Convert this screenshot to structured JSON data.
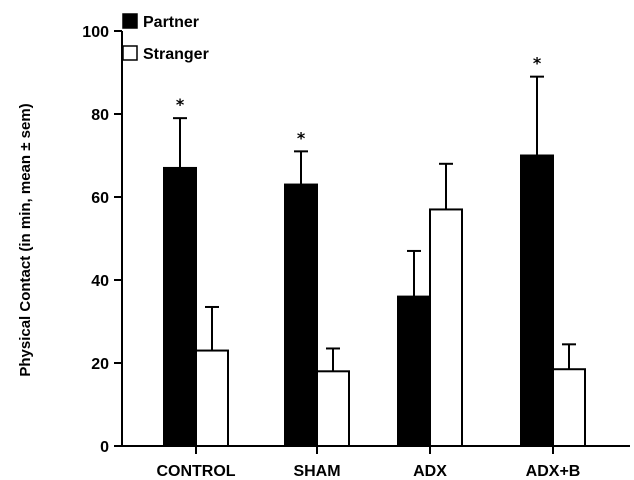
{
  "chart_data": {
    "type": "bar",
    "title": "",
    "xlabel": "",
    "ylabel": "Physical Contact (in min, mean ± sem)",
    "ylim": [
      0,
      100
    ],
    "yticks": [
      0,
      20,
      40,
      60,
      80,
      100
    ],
    "grid": false,
    "legend_position": "top-left",
    "categories": [
      "CONTROL",
      "SHAM",
      "ADX",
      "ADX+B"
    ],
    "series": [
      {
        "name": "Partner",
        "color": "#000000",
        "values": [
          67,
          63,
          36,
          70
        ],
        "errors": [
          12,
          8,
          11,
          19
        ],
        "significance": [
          "*",
          "*",
          "",
          "*"
        ]
      },
      {
        "name": "Stranger",
        "color": "#ffffff",
        "values": [
          23,
          18,
          57,
          18.5
        ],
        "errors": [
          10.5,
          5.5,
          11,
          6
        ],
        "significance": [
          "",
          "",
          "",
          ""
        ]
      }
    ]
  }
}
